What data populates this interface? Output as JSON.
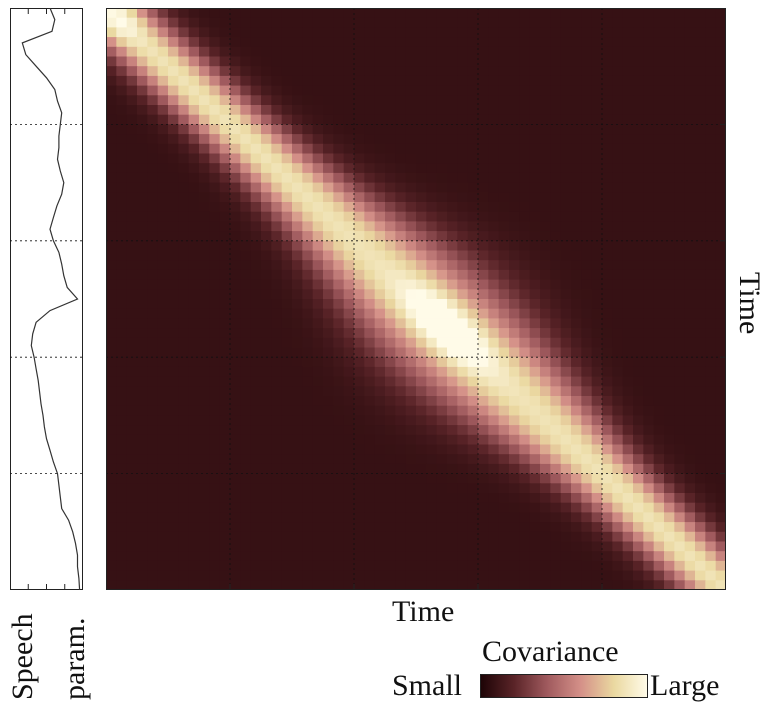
{
  "chart_data": [
    {
      "type": "line",
      "orientation": "vertical",
      "ylabel_lines": [
        "Speech",
        "param."
      ],
      "grid": true,
      "description_values": {
        "time_steps": [
          0,
          0.02,
          0.04,
          0.06,
          0.08,
          0.1,
          0.12,
          0.14,
          0.16,
          0.18,
          0.2,
          0.22,
          0.24,
          0.26,
          0.28,
          0.3,
          0.32,
          0.34,
          0.36,
          0.38,
          0.4,
          0.42,
          0.44,
          0.46,
          0.48,
          0.5,
          0.52,
          0.54,
          0.56,
          0.58,
          0.6,
          0.62,
          0.64,
          0.66,
          0.68,
          0.7,
          0.72,
          0.74,
          0.76,
          0.78,
          0.8,
          0.82,
          0.84,
          0.86,
          0.88,
          0.9,
          0.92,
          0.94,
          0.96,
          0.98,
          1.0
        ],
        "values": [
          0.55,
          0.62,
          0.58,
          0.15,
          0.2,
          0.35,
          0.5,
          0.62,
          0.66,
          0.72,
          0.7,
          0.68,
          0.68,
          0.66,
          0.7,
          0.75,
          0.72,
          0.65,
          0.6,
          0.55,
          0.6,
          0.68,
          0.72,
          0.75,
          0.8,
          0.95,
          0.55,
          0.35,
          0.3,
          0.28,
          0.32,
          0.35,
          0.38,
          0.4,
          0.42,
          0.45,
          0.47,
          0.5,
          0.55,
          0.6,
          0.66,
          0.68,
          0.7,
          0.72,
          0.82,
          0.88,
          0.92,
          0.95,
          0.95,
          0.97,
          0.98
        ]
      }
    },
    {
      "type": "heatmap",
      "xlabel": "Time",
      "ylabel": "Time",
      "grid": true,
      "colormap": [
        "#1e0406",
        "#5a2428",
        "#a05a5e",
        "#d49088",
        "#ead8a0",
        "#fffbe8"
      ],
      "legend": {
        "title": "Covariance",
        "min_label": "Small",
        "max_label": "Large"
      }
    }
  ]
}
